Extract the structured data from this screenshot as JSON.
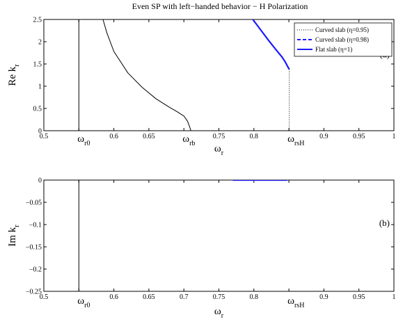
{
  "title": "Even SP with left−handed behavior − H Polarization",
  "chart_data": [
    {
      "type": "line",
      "panel_label": "(a)",
      "ylabel": {
        "main": "Re k",
        "sub": "r"
      },
      "xlabel": {
        "main": "ω",
        "sub": "r"
      },
      "xlim": [
        0.5,
        1.0
      ],
      "ylim": [
        0,
        2.5
      ],
      "xticks": [
        "0.5",
        "0.55",
        "0.6",
        "0.65",
        "0.7",
        "0.75",
        "0.8",
        "0.85",
        "0.9",
        "0.95",
        "1"
      ],
      "yticks": [
        "0",
        "0.5",
        "1",
        "1.5",
        "2",
        "2.5"
      ],
      "hidden_xticks": [
        "0.55",
        "0.7",
        "0.85"
      ],
      "xmarkers": [
        {
          "x": 0.55,
          "main": "ω",
          "sub": "r0"
        },
        {
          "x": 0.7,
          "main": "ω",
          "sub": "rb"
        },
        {
          "x": 0.85,
          "main": "ω",
          "sub": "rsH"
        }
      ],
      "grid": false,
      "legend_position": "top-right",
      "legend": [
        {
          "label": "Curved slab (η=0.95)",
          "style": "dotted",
          "color": "#000000"
        },
        {
          "label": "Curved slab (η=0.98)",
          "style": "dashed",
          "color": "#1a1aff"
        },
        {
          "label": "Flat slab (η=1)",
          "style": "solid",
          "color": "#1a1aff"
        }
      ],
      "series": [
        {
          "color": "#000000",
          "style": "solid",
          "width": 1,
          "points": [
            [
              0.55,
              0
            ],
            [
              0.55,
              2.5
            ]
          ]
        },
        {
          "color": "#000000",
          "style": "solid",
          "width": 1,
          "points": [
            [
              0.5845,
              2.5
            ],
            [
              0.59,
              2.2
            ],
            [
              0.6,
              1.78
            ],
            [
              0.62,
              1.3
            ],
            [
              0.64,
              0.98
            ],
            [
              0.66,
              0.72
            ],
            [
              0.68,
              0.52
            ],
            [
              0.69,
              0.43
            ],
            [
              0.7,
              0.33
            ],
            [
              0.705,
              0.22
            ],
            [
              0.708,
              0.1
            ],
            [
              0.71,
              0
            ]
          ]
        },
        {
          "color": "#1a1aff",
          "style": "solid",
          "width": 2.2,
          "points": [
            [
              0.7985,
              2.5
            ],
            [
              0.81,
              2.26
            ],
            [
              0.82,
              2.05
            ],
            [
              0.83,
              1.85
            ],
            [
              0.84,
              1.66
            ],
            [
              0.845,
              1.54
            ],
            [
              0.848,
              1.45
            ],
            [
              0.8505,
              1.38
            ]
          ]
        },
        {
          "color": "#000000",
          "style": "dotted",
          "width": 1,
          "points": [
            [
              0.8505,
              1.38
            ],
            [
              0.8505,
              0
            ]
          ]
        }
      ]
    },
    {
      "type": "line",
      "panel_label": "(b)",
      "ylabel": {
        "main": "Im k",
        "sub": "r"
      },
      "xlabel": {
        "main": "ω",
        "sub": "r"
      },
      "xlim": [
        0.5,
        1.0
      ],
      "ylim": [
        -0.25,
        0
      ],
      "xticks": [
        "0.5",
        "0.55",
        "0.6",
        "0.65",
        "0.7",
        "0.75",
        "0.8",
        "0.85",
        "0.9",
        "0.95",
        "1"
      ],
      "yticks": [
        "0",
        "−0.05",
        "−0.1",
        "−0.15",
        "−0.2",
        "−0.25"
      ],
      "hidden_xticks": [
        "0.55",
        "0.85"
      ],
      "xmarkers": [
        {
          "x": 0.55,
          "main": "ω",
          "sub": "r0"
        },
        {
          "x": 0.85,
          "main": "ω",
          "sub": "rsH"
        }
      ],
      "grid": false,
      "series": [
        {
          "color": "#000000",
          "style": "solid",
          "width": 1,
          "points": [
            [
              0.55,
              0
            ],
            [
              0.55,
              -0.25
            ]
          ]
        },
        {
          "color": "#1a1aff",
          "style": "solid",
          "width": 2.2,
          "points": [
            [
              0.77,
              0
            ],
            [
              0.8475,
              0
            ]
          ]
        },
        {
          "color": "#1a1aff",
          "style": "solid",
          "width": 2.2,
          "points": [
            [
              0.8,
              0.0008
            ],
            [
              0.8,
              -0.0015
            ]
          ]
        }
      ]
    }
  ]
}
